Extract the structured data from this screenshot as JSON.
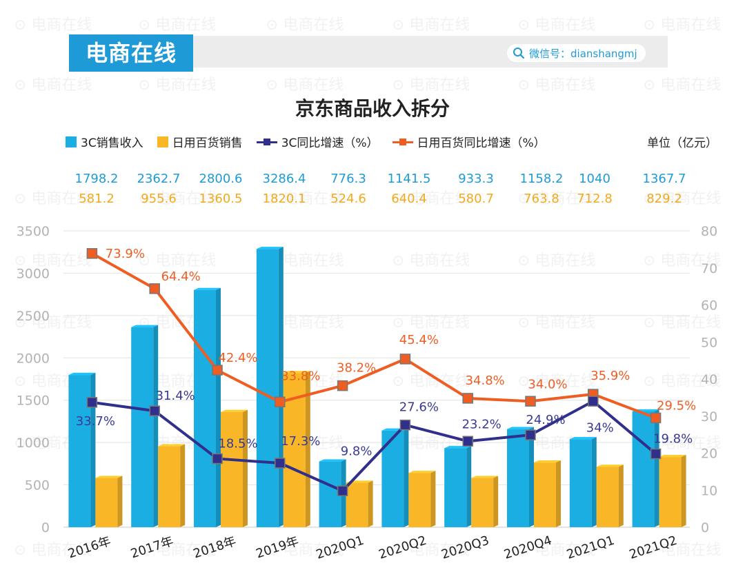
{
  "brand": "电商在线",
  "wechat_label": "微信号：dianshangmj",
  "watermark": "电商在线",
  "colors": {
    "bar_3c": "#1aaee3",
    "bar_daily": "#f9b727",
    "line_3c": "#302f8c",
    "line_daily": "#ef5d23",
    "growth_label_3c": "#3a3a96",
    "growth_label_daily": "#ef5d23",
    "label_3c_value": "#1e9bd7",
    "label_daily_value": "#f4a91c"
  },
  "chart_data": {
    "type": "bar",
    "title": "京东商品收入拆分",
    "unit": "单位（亿元）",
    "categories": [
      "2016年",
      "2017年",
      "2018年",
      "2019年",
      "2020Q1",
      "2020Q2",
      "2020Q3",
      "2020Q4",
      "2021Q1",
      "2021Q2"
    ],
    "series": [
      {
        "name": "3C销售收入",
        "type": "bar",
        "axis": "left",
        "values": [
          1798.2,
          2362.7,
          2800.6,
          3286.4,
          776.3,
          1141.5,
          933.3,
          1158.2,
          1040,
          1367.7
        ],
        "labels": [
          "1798.2",
          "2362.7",
          "2800.6",
          "3286.4",
          "776.3",
          "1141.5",
          "933.3",
          "1158.2",
          "1040",
          "1367.7"
        ]
      },
      {
        "name": "日用百货销售",
        "type": "bar",
        "axis": "left",
        "values": [
          581.2,
          955.6,
          1360.5,
          1820.1,
          524.6,
          640.4,
          580.7,
          763.8,
          712.8,
          829.2
        ],
        "labels": [
          "581.2",
          "955.6",
          "1360.5",
          "1820.1",
          "524.6",
          "640.4",
          "580.7",
          "763.8",
          "712.8",
          "829.2"
        ]
      },
      {
        "name": "3C同比增速（%）",
        "type": "line",
        "axis": "right",
        "values": [
          33.7,
          31.4,
          18.5,
          17.3,
          9.8,
          27.6,
          23.2,
          24.9,
          34,
          19.8
        ],
        "labels": [
          "33.7%",
          "31.4%",
          "18.5%",
          "17.3%",
          "9.8%",
          "27.6%",
          "23.2%",
          "24.9%",
          "34%",
          "19.8%"
        ]
      },
      {
        "name": "日用百货同比增速（%）",
        "type": "line",
        "axis": "right",
        "values": [
          73.9,
          64.4,
          42.4,
          33.8,
          38.2,
          45.4,
          34.8,
          34.0,
          35.9,
          29.5
        ],
        "labels": [
          "73.9%",
          "64.4%",
          "42.4%",
          "33.8%",
          "38.2%",
          "45.4%",
          "34.8%",
          "34.0%",
          "35.9%",
          "29.5%"
        ]
      }
    ],
    "y_left": {
      "range": [
        0,
        3500
      ],
      "ticks": [
        "0",
        "500",
        "1000",
        "1500",
        "2000",
        "2500",
        "3000",
        "3500"
      ]
    },
    "y_right": {
      "range": [
        0,
        80
      ],
      "ticks": [
        "0",
        "10",
        "20",
        "30",
        "40",
        "50",
        "60",
        "70",
        "80"
      ]
    },
    "grid": true,
    "legend_position": "top"
  }
}
